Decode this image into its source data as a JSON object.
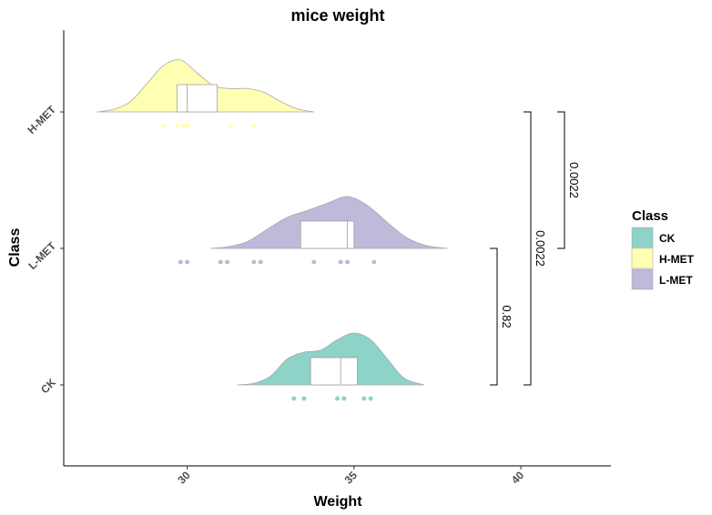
{
  "chart_data": {
    "type": "raincloud",
    "title": "mice weight",
    "xlabel": "Weight",
    "ylabel": "Class",
    "xlim": [
      26.3,
      42.7
    ],
    "x_ticks": [
      30,
      35,
      40
    ],
    "categories": [
      "CK",
      "L-MET",
      "H-MET"
    ],
    "grid": false,
    "legend": {
      "title": "Class",
      "position": "right",
      "entries": [
        "CK",
        "H-MET",
        "L-MET"
      ]
    },
    "series": [
      {
        "name": "CK",
        "color": "#8dd3c7",
        "points": [
          33.2,
          33.5,
          34.5,
          34.7,
          35.3,
          35.5
        ],
        "box": {
          "q1": 33.7,
          "median": 34.6,
          "q3": 35.1
        },
        "density_range": [
          31.5,
          37.1
        ],
        "density": [
          [
            31.5,
            0.0
          ],
          [
            32.0,
            0.03
          ],
          [
            32.5,
            0.17
          ],
          [
            33.0,
            0.5
          ],
          [
            33.5,
            0.63
          ],
          [
            34.0,
            0.67
          ],
          [
            34.5,
            0.87
          ],
          [
            35.0,
            1.0
          ],
          [
            35.5,
            0.87
          ],
          [
            36.0,
            0.5
          ],
          [
            36.5,
            0.13
          ],
          [
            37.1,
            0.0
          ]
        ]
      },
      {
        "name": "L-MET",
        "color": "#bebada",
        "points": [
          29.8,
          30.0,
          31.0,
          31.2,
          32.0,
          32.2,
          33.8,
          34.6,
          34.8,
          35.6
        ],
        "box": {
          "q1": 33.4,
          "median": 34.8,
          "q3": 35.0
        },
        "density_range": [
          30.7,
          37.8
        ],
        "density": [
          [
            30.7,
            0.0
          ],
          [
            31.2,
            0.03
          ],
          [
            31.8,
            0.13
          ],
          [
            32.4,
            0.37
          ],
          [
            33.0,
            0.6
          ],
          [
            33.6,
            0.73
          ],
          [
            34.2,
            0.87
          ],
          [
            34.8,
            1.0
          ],
          [
            35.4,
            0.83
          ],
          [
            36.0,
            0.5
          ],
          [
            36.6,
            0.2
          ],
          [
            37.2,
            0.05
          ],
          [
            37.8,
            0.0
          ]
        ]
      },
      {
        "name": "H-MET",
        "color": "#ffffb3",
        "points": [
          29.3,
          29.7,
          29.9,
          30.0,
          31.3,
          32.0
        ],
        "box": {
          "q1": 29.7,
          "median": 30.0,
          "q3": 30.9
        },
        "density_range": [
          27.3,
          33.8
        ],
        "density": [
          [
            27.3,
            0.0
          ],
          [
            27.8,
            0.05
          ],
          [
            28.3,
            0.2
          ],
          [
            28.8,
            0.55
          ],
          [
            29.3,
            0.9
          ],
          [
            29.8,
            1.0
          ],
          [
            30.3,
            0.75
          ],
          [
            30.8,
            0.5
          ],
          [
            31.3,
            0.45
          ],
          [
            31.8,
            0.45
          ],
          [
            32.3,
            0.38
          ],
          [
            32.8,
            0.2
          ],
          [
            33.3,
            0.06
          ],
          [
            33.8,
            0.0
          ]
        ]
      }
    ],
    "comparisons": [
      {
        "groups": [
          "CK",
          "L-MET"
        ],
        "label": "0.82"
      },
      {
        "groups": [
          "CK",
          "H-MET"
        ],
        "label": "0.0022"
      },
      {
        "groups": [
          "L-MET",
          "H-MET"
        ],
        "label": "0.0022"
      }
    ]
  }
}
